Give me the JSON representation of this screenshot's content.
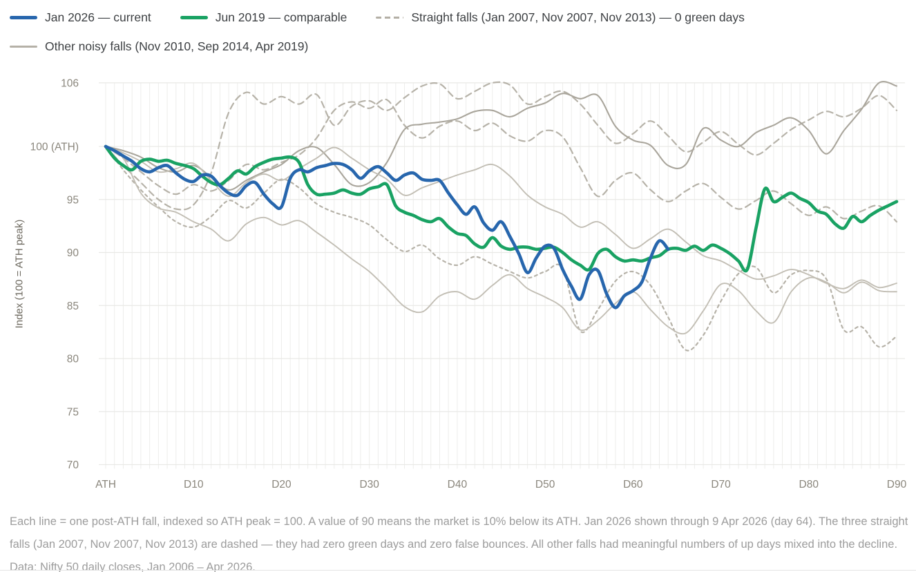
{
  "legend": {
    "items": [
      {
        "id": "jan-2026",
        "label": "Jan 2026 — current",
        "style": "solid",
        "color": "#2766ad",
        "row": 1
      },
      {
        "id": "jun-2019",
        "label": "Jun 2019 — comparable",
        "style": "solid",
        "color": "#19a263",
        "row": 1
      },
      {
        "id": "straight-falls",
        "label": "Straight falls (Jan 2007, Nov 2007, Nov 2013) — 0 green days",
        "style": "dashed",
        "color": "#b3afa5",
        "row": 1
      },
      {
        "id": "other-noisy-falls",
        "label": "Other noisy falls (Nov 2010, Sep 2014, Apr 2019)",
        "style": "solid-thin",
        "color": "#b5b1a7",
        "row": 2
      }
    ]
  },
  "y_axis": {
    "title": "Index (100 = ATH peak)",
    "ticks": [
      {
        "value": 106,
        "label": "106"
      },
      {
        "value": 100,
        "label": "100 (ATH)"
      },
      {
        "value": 95,
        "label": "95"
      },
      {
        "value": 90,
        "label": "90"
      },
      {
        "value": 85,
        "label": "85"
      },
      {
        "value": 80,
        "label": "80"
      },
      {
        "value": 75,
        "label": "75"
      },
      {
        "value": 70,
        "label": "70"
      }
    ]
  },
  "x_axis": {
    "ticks": [
      {
        "day": 0,
        "label": "ATH"
      },
      {
        "day": 10,
        "label": "D10"
      },
      {
        "day": 20,
        "label": "D20"
      },
      {
        "day": 30,
        "label": "D30"
      },
      {
        "day": 40,
        "label": "D40"
      },
      {
        "day": 50,
        "label": "D50"
      },
      {
        "day": 60,
        "label": "D60"
      },
      {
        "day": 70,
        "label": "D70"
      },
      {
        "day": 80,
        "label": "D80"
      },
      {
        "day": 90,
        "label": "D90"
      }
    ]
  },
  "caption": "Each line = one post-ATH fall, indexed so ATH peak = 100. A value of 90 means the market is 10% below its ATH. Jan 2026 shown through 9 Apr 2026 (day 64). The three straight falls (Jan 2007, Nov 2007, Nov 2013) are dashed — they had zero green days and zero false bounces. All other falls had meaningful numbers of up days mixed into the decline. Data: Nifty 50 daily closes, Jan 2006 – Apr 2026.",
  "chart_data": {
    "type": "line",
    "xlabel": "days since ATH",
    "ylabel": "Index (100 = ATH peak)",
    "xlim": [
      0,
      91
    ],
    "ylim": [
      70,
      106
    ],
    "grid": {
      "vertical_every_days": 1,
      "horizontal_at": [
        70,
        75,
        80,
        85,
        90,
        95,
        100,
        106
      ]
    },
    "legend_position": "top-left",
    "series": [
      {
        "id": "dashed-jan-2007",
        "name": "Jan 2007 (straight fall)",
        "color": "#b6b2a8",
        "width": 2.2,
        "dash": "9 6",
        "day_start": 0,
        "day_step": 2,
        "values": [
          100,
          98.2,
          96.6,
          95.0,
          94.1,
          94.5,
          97.5,
          103.2,
          105.1,
          104.0,
          104.7,
          104.0,
          104.9,
          102.0,
          103.8,
          104.3,
          103.4,
          104.6,
          105.7,
          105.9,
          104.5,
          105.2,
          106.0,
          105.8,
          104.0,
          104.7,
          105.2,
          104.0,
          102.0,
          100.3,
          101.2,
          102.4,
          101.0,
          99.5,
          100.4,
          101.4,
          100.2,
          99.2,
          100.3,
          101.6,
          102.5,
          103.3,
          102.8,
          103.6,
          104.8,
          103.4
        ]
      },
      {
        "id": "dashed-nov-2007",
        "name": "Nov 2007 (straight fall)",
        "color": "#b6b2a8",
        "width": 2.2,
        "dash": "9 6",
        "day_start": 0,
        "day_step": 2,
        "values": [
          100,
          98.9,
          97.6,
          96.3,
          95.5,
          96.4,
          95.8,
          96.8,
          98.3,
          97.8,
          98.5,
          99.2,
          100.8,
          103.4,
          104.2,
          103.6,
          104.4,
          102.0,
          100.8,
          101.9,
          102.4,
          101.5,
          102.2,
          101.0,
          100.5,
          101.5,
          100.9,
          98.0,
          95.3,
          96.8,
          97.5,
          95.9,
          94.8,
          95.8,
          96.5,
          95.2,
          94.1,
          94.9,
          95.8,
          94.6,
          93.5,
          94.3,
          93.2,
          93.9,
          94.4,
          92.9
        ]
      },
      {
        "id": "dashed-nov-2013",
        "name": "Nov 2013 (straight fall)",
        "color": "#b6b2a8",
        "width": 2.2,
        "dash": "4 5",
        "day_start": 0,
        "day_step": 2,
        "values": [
          100,
          97.8,
          95.9,
          94.3,
          92.9,
          92.4,
          93.4,
          94.9,
          94.2,
          95.6,
          96.9,
          96.1,
          94.6,
          93.8,
          93.3,
          92.6,
          91.2,
          90.1,
          90.7,
          89.4,
          88.8,
          89.6,
          88.9,
          88.2,
          87.6,
          88.2,
          88.5,
          82.6,
          84.6,
          87.3,
          88.2,
          86.9,
          83.9,
          80.8,
          82.2,
          85.4,
          88.0,
          88.6,
          86.2,
          87.9,
          88.3,
          87.5,
          82.7,
          83.0,
          81.1,
          82.1
        ]
      },
      {
        "id": "gray-nov-2010",
        "name": "Nov 2010 (noisy fall)",
        "color": "#a9a59b",
        "width": 2.1,
        "dash": null,
        "day_start": 0,
        "day_step": 2,
        "values": [
          100,
          99.6,
          99.0,
          98.0,
          97.6,
          98.2,
          97.1,
          95.9,
          96.8,
          97.6,
          98.3,
          99.6,
          99.9,
          98.3,
          96.4,
          96.6,
          98.5,
          101.6,
          102.1,
          102.3,
          102.6,
          103.3,
          103.4,
          102.8,
          103.6,
          104.1,
          105.0,
          104.5,
          104.8,
          101.9,
          100.6,
          100.1,
          98.2,
          98.3,
          101.7,
          100.6,
          100.0,
          101.3,
          102.0,
          102.7,
          101.5,
          99.3,
          101.5,
          103.5,
          106.0,
          105.7
        ]
      },
      {
        "id": "gray-sep-2014",
        "name": "Sep 2014 (noisy fall)",
        "color": "#c2beb4",
        "width": 1.9,
        "dash": null,
        "day_start": 0,
        "day_step": 2,
        "values": [
          100,
          99.4,
          98.6,
          97.6,
          97.9,
          98.4,
          96.8,
          95.3,
          96.6,
          97.4,
          96.8,
          97.9,
          98.9,
          99.9,
          98.9,
          97.8,
          96.9,
          95.4,
          96.1,
          96.7,
          97.3,
          97.8,
          98.3,
          97.2,
          95.4,
          94.3,
          93.6,
          92.4,
          92.9,
          91.7,
          90.4,
          91.3,
          92.2,
          91.0,
          89.7,
          89.2,
          88.3,
          87.5,
          87.8,
          88.4,
          87.9,
          87.1,
          86.6,
          87.4,
          86.7,
          87.1
        ]
      },
      {
        "id": "gray-apr-2019",
        "name": "Apr 2019 (noisy fall)",
        "color": "#c2beb4",
        "width": 1.9,
        "dash": null,
        "day_start": 0,
        "day_step": 2,
        "values": [
          100,
          98.9,
          95.6,
          94.2,
          93.8,
          92.9,
          92.2,
          91.1,
          92.7,
          93.3,
          92.6,
          93.0,
          91.9,
          90.7,
          89.4,
          88.2,
          86.6,
          84.9,
          84.4,
          85.9,
          86.3,
          85.6,
          86.9,
          87.9,
          86.6,
          85.8,
          84.8,
          82.7,
          83.6,
          85.2,
          86.3,
          84.6,
          83.0,
          82.4,
          84.5,
          87.0,
          86.4,
          84.5,
          83.4,
          86.3,
          87.6,
          87.2,
          86.2,
          87.2,
          86.4,
          86.3
        ]
      },
      {
        "id": "jun-2019",
        "name": "Jun 2019 — comparable",
        "color": "#19a263",
        "width": 4.6,
        "dash": null,
        "day_start": 0,
        "day_step": 1,
        "values": [
          100,
          98.9,
          98.2,
          97.8,
          98.6,
          98.8,
          98.6,
          98.7,
          98.4,
          98.2,
          97.9,
          97.2,
          96.6,
          96.4,
          97.0,
          97.7,
          97.4,
          98.1,
          98.5,
          98.8,
          98.9,
          99.0,
          98.5,
          96.4,
          95.5,
          95.5,
          95.6,
          95.9,
          95.6,
          95.5,
          96.0,
          96.2,
          96.4,
          94.4,
          93.8,
          93.5,
          93.1,
          92.9,
          93.2,
          92.4,
          91.8,
          91.6,
          90.8,
          90.5,
          91.4,
          90.6,
          90.3,
          90.5,
          90.5,
          90.3,
          90.4,
          90.5,
          90.0,
          89.3,
          88.8,
          88.4,
          89.9,
          90.3,
          89.6,
          89.2,
          89.3,
          89.2,
          89.5,
          89.7,
          90.3,
          90.4,
          90.2,
          90.6,
          90.2,
          90.7,
          90.4,
          89.9,
          89.2,
          88.4,
          92.3,
          96.0,
          94.8,
          95.2,
          95.6,
          95.1,
          94.7,
          93.9,
          93.6,
          92.7,
          92.3,
          93.4,
          92.9,
          93.5,
          94.0,
          94.4,
          94.8
        ]
      },
      {
        "id": "jan-2026",
        "name": "Jan 2026 — current",
        "color": "#2766ad",
        "width": 4.6,
        "dash": null,
        "day_start": 0,
        "day_step": 1,
        "values": [
          100,
          99.6,
          99.1,
          98.6,
          97.9,
          97.6,
          98.0,
          98.2,
          97.5,
          96.9,
          96.7,
          97.3,
          97.2,
          96.3,
          95.6,
          95.4,
          96.3,
          96.6,
          95.5,
          94.6,
          94.3,
          97.0,
          97.8,
          97.6,
          98.0,
          98.2,
          98.4,
          98.3,
          97.8,
          97.0,
          97.7,
          98.1,
          97.5,
          96.8,
          97.3,
          97.5,
          96.9,
          96.8,
          96.8,
          95.6,
          94.5,
          93.6,
          94.3,
          92.8,
          92.1,
          92.9,
          91.5,
          89.9,
          88.1,
          89.5,
          90.6,
          90.4,
          88.4,
          86.8,
          85.6,
          87.9,
          88.3,
          86.1,
          84.8,
          85.9,
          86.4,
          87.2,
          89.5,
          91.1,
          90.3
        ]
      }
    ]
  }
}
